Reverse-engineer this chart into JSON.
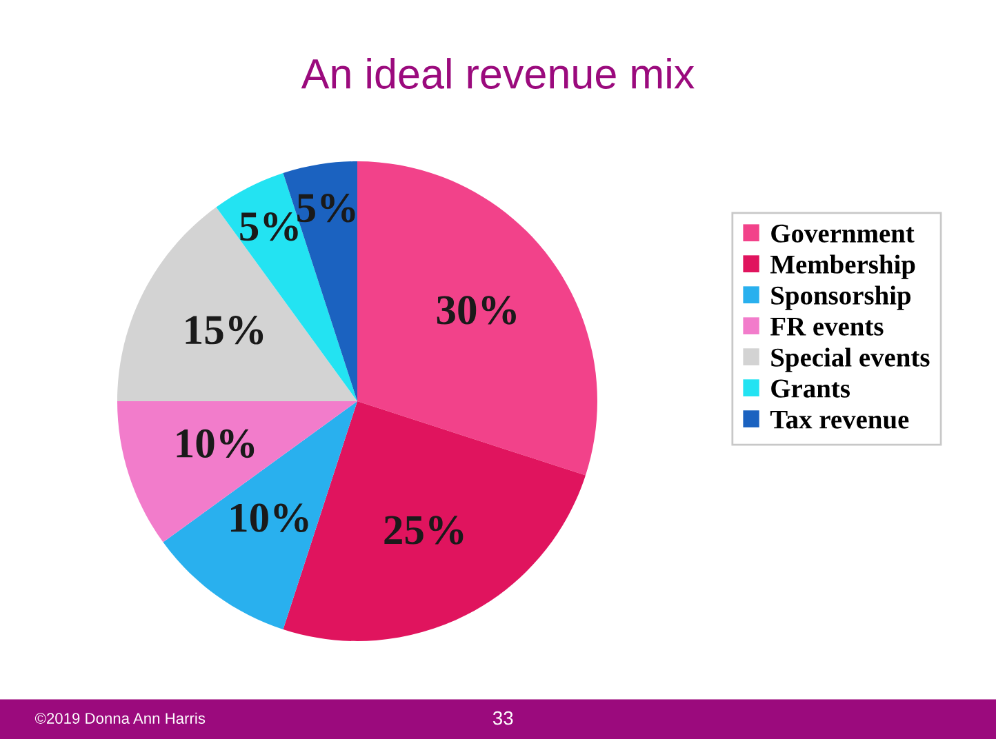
{
  "chart_data": {
    "type": "pie",
    "title": "An ideal revenue mix",
    "categories": [
      "Government",
      "Membership",
      "Sponsorship",
      "FR events",
      "Special events",
      "Grants",
      "Tax revenue"
    ],
    "values": [
      30,
      25,
      10,
      10,
      15,
      5,
      5
    ],
    "colors": [
      "#f2428a",
      "#e0145e",
      "#29b0ee",
      "#f27ccb",
      "#d3d3d3",
      "#23e3f2",
      "#1b62c0"
    ],
    "value_labels": [
      "30%",
      "25%",
      "10%",
      "10%",
      "15%",
      "5%",
      "5%"
    ],
    "legend": "right",
    "annotations": [
      "©2019 Donna Ann Harris",
      "33"
    ]
  }
}
